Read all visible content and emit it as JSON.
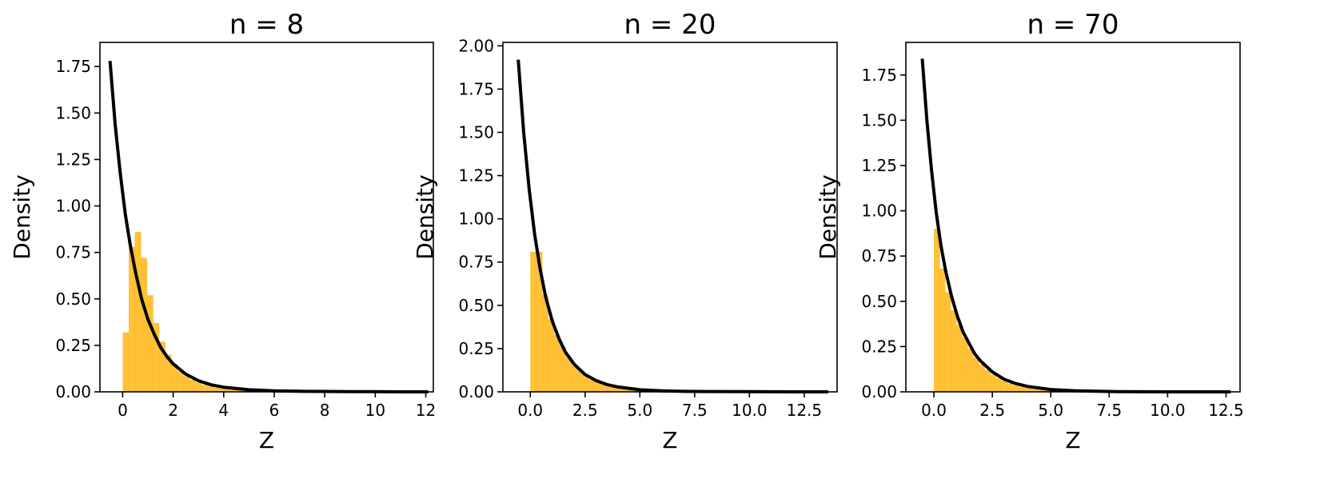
{
  "figure": {
    "bar_color": "#ffb000",
    "curve_color": "#000000",
    "bar_opacity": 0.78
  },
  "chart_data": [
    {
      "type": "bar",
      "title": "n = 8",
      "xlabel": "Z",
      "ylabel": "Density",
      "xlim": [
        -0.9,
        12.3
      ],
      "ylim": [
        0,
        1.88
      ],
      "xticks": [
        0,
        2,
        4,
        6,
        8,
        10,
        12
      ],
      "xtick_labels": [
        "0",
        "2",
        "4",
        "6",
        "8",
        "10",
        "12"
      ],
      "yticks": [
        0,
        0.25,
        0.5,
        0.75,
        1.0,
        1.25,
        1.5,
        1.75
      ],
      "ytick_labels": [
        "0.00",
        "0.25",
        "0.50",
        "0.75",
        "1.00",
        "1.25",
        "1.50",
        "1.75"
      ],
      "grid": false,
      "histogram": {
        "bin_width": 0.24,
        "bin_starts": [
          0,
          0.24,
          0.48,
          0.72,
          0.96,
          1.2,
          1.44,
          1.68,
          1.92,
          2.16,
          2.4,
          2.64,
          2.88,
          3.12,
          3.36,
          3.6,
          3.84,
          4.08,
          4.32,
          4.56,
          4.8,
          5.04,
          5.28,
          5.52,
          5.76,
          6.0,
          6.24,
          6.48,
          6.72,
          6.96
        ],
        "density": [
          0.32,
          0.78,
          0.86,
          0.72,
          0.52,
          0.37,
          0.27,
          0.2,
          0.15,
          0.11,
          0.085,
          0.065,
          0.05,
          0.038,
          0.03,
          0.023,
          0.018,
          0.014,
          0.011,
          0.009,
          0.007,
          0.005,
          0.004,
          0.003,
          0.003,
          0.002,
          0.002,
          0.001,
          0.001,
          0.001
        ]
      },
      "curve": {
        "label": "",
        "x": [
          -0.5,
          -0.3,
          -0.1,
          0.1,
          0.3,
          0.5,
          0.75,
          1.0,
          1.25,
          1.5,
          1.75,
          2.0,
          2.5,
          3.0,
          3.5,
          4.0,
          5.0,
          6.0,
          7.0,
          8.0,
          9.0,
          10.0,
          11.0,
          12.1
        ],
        "y": [
          1.78,
          1.44,
          1.18,
          0.96,
          0.79,
          0.65,
          0.5,
          0.39,
          0.31,
          0.24,
          0.19,
          0.15,
          0.095,
          0.06,
          0.038,
          0.025,
          0.011,
          0.005,
          0.003,
          0.002,
          0.001,
          0.001,
          0.0,
          0.0
        ]
      }
    },
    {
      "type": "bar",
      "title": "n = 20",
      "xlabel": "Z",
      "ylabel": "Density",
      "xlim": [
        -1.25,
        14.0
      ],
      "ylim": [
        0,
        2.02
      ],
      "xticks": [
        0,
        2.5,
        5.0,
        7.5,
        10.0,
        12.5
      ],
      "xtick_labels": [
        "0.0",
        "2.5",
        "5.0",
        "7.5",
        "10.0",
        "12.5"
      ],
      "yticks": [
        0,
        0.25,
        0.5,
        0.75,
        1.0,
        1.25,
        1.5,
        1.75,
        2.0
      ],
      "ytick_labels": [
        "0.00",
        "0.25",
        "0.50",
        "0.75",
        "1.00",
        "1.25",
        "1.50",
        "1.75",
        "2.00"
      ],
      "grid": false,
      "histogram": {
        "bin_width": 0.27,
        "bin_starts": [
          0,
          0.27,
          0.54,
          0.81,
          1.08,
          1.35,
          1.62,
          1.89,
          2.16,
          2.43,
          2.7,
          2.97,
          3.24,
          3.51,
          3.78,
          4.05,
          4.32,
          4.59,
          4.86,
          5.13,
          5.4,
          5.67,
          5.94,
          6.21
        ],
        "density": [
          0.81,
          0.81,
          0.56,
          0.42,
          0.33,
          0.26,
          0.2,
          0.15,
          0.12,
          0.09,
          0.07,
          0.055,
          0.042,
          0.033,
          0.026,
          0.02,
          0.015,
          0.011,
          0.009,
          0.007,
          0.005,
          0.004,
          0.003,
          0.002
        ]
      },
      "curve": {
        "label": "",
        "x": [
          -0.55,
          -0.3,
          -0.05,
          0.2,
          0.45,
          0.7,
          1.0,
          1.3,
          1.6,
          2.0,
          2.5,
          3.0,
          3.5,
          4.0,
          5.0,
          6.0,
          7.0,
          8.0,
          10.0,
          12.0,
          13.6
        ],
        "y": [
          1.92,
          1.5,
          1.17,
          0.91,
          0.71,
          0.55,
          0.41,
          0.31,
          0.23,
          0.16,
          0.1,
          0.065,
          0.042,
          0.028,
          0.012,
          0.006,
          0.003,
          0.002,
          0.001,
          0.0,
          0.0
        ]
      }
    },
    {
      "type": "bar",
      "title": "n = 70",
      "xlabel": "Z",
      "ylabel": "Density",
      "xlim": [
        -1.2,
        13.1
      ],
      "ylim": [
        0,
        1.93
      ],
      "xticks": [
        0,
        2.5,
        5.0,
        7.5,
        10.0,
        12.5
      ],
      "xtick_labels": [
        "0.0",
        "2.5",
        "5.0",
        "7.5",
        "10.0",
        "12.5"
      ],
      "yticks": [
        0,
        0.25,
        0.5,
        0.75,
        1.0,
        1.25,
        1.5,
        1.75
      ],
      "ytick_labels": [
        "0.00",
        "0.25",
        "0.50",
        "0.75",
        "1.00",
        "1.25",
        "1.50",
        "1.75"
      ],
      "grid": false,
      "histogram": {
        "bin_width": 0.24,
        "bin_starts": [
          0,
          0.24,
          0.48,
          0.72,
          0.96,
          1.2,
          1.44,
          1.68,
          1.92,
          2.16,
          2.4,
          2.64,
          2.88,
          3.12,
          3.36,
          3.6,
          3.84,
          4.08,
          4.32,
          4.56,
          4.8,
          5.04,
          5.28,
          5.52,
          5.76,
          6.0
        ],
        "density": [
          0.9,
          0.68,
          0.55,
          0.45,
          0.37,
          0.3,
          0.24,
          0.19,
          0.15,
          0.12,
          0.095,
          0.075,
          0.06,
          0.047,
          0.037,
          0.029,
          0.023,
          0.018,
          0.014,
          0.011,
          0.008,
          0.006,
          0.005,
          0.004,
          0.003,
          0.002
        ]
      },
      "curve": {
        "label": "",
        "x": [
          -0.5,
          -0.3,
          -0.1,
          0.1,
          0.3,
          0.5,
          0.75,
          1.0,
          1.25,
          1.5,
          1.75,
          2.0,
          2.5,
          3.0,
          3.5,
          4.0,
          5.0,
          6.0,
          7.0,
          8.0,
          10.0,
          12.7
        ],
        "y": [
          1.84,
          1.5,
          1.22,
          0.99,
          0.81,
          0.67,
          0.53,
          0.42,
          0.33,
          0.27,
          0.21,
          0.17,
          0.11,
          0.07,
          0.046,
          0.03,
          0.013,
          0.006,
          0.003,
          0.001,
          0.0,
          0.0
        ]
      }
    }
  ]
}
